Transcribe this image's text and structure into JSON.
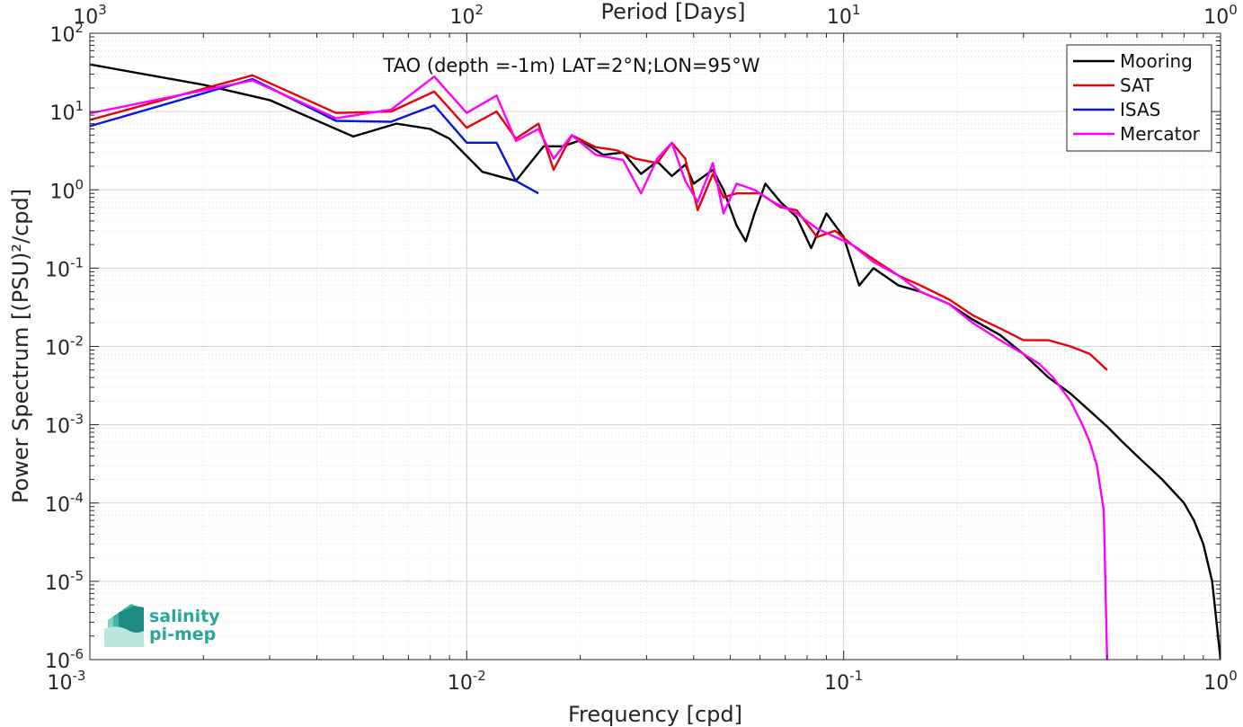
{
  "chart_data": {
    "type": "line",
    "title": "TAO (depth =-1m) LAT=2°N;LON=95°W",
    "xlabel": "Frequency [cpd]",
    "ylabel": "Power Spectrum [(PSU)²/cpd]",
    "x2label": "Period [Days]",
    "xscale": "log",
    "yscale": "log",
    "xlim": [
      0.001,
      1
    ],
    "ylim": [
      1e-06,
      100
    ],
    "x_ticks": [
      {
        "base": "10",
        "exp": "-3"
      },
      {
        "base": "10",
        "exp": "-2"
      },
      {
        "base": "10",
        "exp": "-1"
      },
      {
        "base": "10",
        "exp": "0"
      }
    ],
    "x2_ticks": [
      {
        "base": "10",
        "exp": "3"
      },
      {
        "base": "10",
        "exp": "2"
      },
      {
        "base": "10",
        "exp": "1"
      },
      {
        "base": "10",
        "exp": "0"
      }
    ],
    "y_ticks": [
      {
        "base": "10",
        "exp": "2"
      },
      {
        "base": "10",
        "exp": "1"
      },
      {
        "base": "10",
        "exp": "0"
      },
      {
        "base": "10",
        "exp": "-1"
      },
      {
        "base": "10",
        "exp": "-2"
      },
      {
        "base": "10",
        "exp": "-3"
      },
      {
        "base": "10",
        "exp": "-4"
      },
      {
        "base": "10",
        "exp": "-5"
      },
      {
        "base": "10",
        "exp": "-6"
      }
    ],
    "grid": true,
    "minor_grid": true,
    "legend_position": "top-right",
    "series": [
      {
        "name": "Mooring",
        "color": "#000000",
        "points": [
          [
            0.001,
            40
          ],
          [
            0.002,
            22
          ],
          [
            0.003,
            14
          ],
          [
            0.005,
            4.8
          ],
          [
            0.0065,
            7
          ],
          [
            0.008,
            6
          ],
          [
            0.009,
            4.5
          ],
          [
            0.011,
            1.7
          ],
          [
            0.0135,
            1.3
          ],
          [
            0.016,
            3.6
          ],
          [
            0.018,
            3.6
          ],
          [
            0.02,
            4.3
          ],
          [
            0.023,
            2.8
          ],
          [
            0.026,
            3.0
          ],
          [
            0.029,
            1.6
          ],
          [
            0.032,
            2.3
          ],
          [
            0.035,
            1.5
          ],
          [
            0.038,
            2.1
          ],
          [
            0.04,
            1.2
          ],
          [
            0.045,
            1.8
          ],
          [
            0.048,
            1.0
          ],
          [
            0.052,
            0.35
          ],
          [
            0.055,
            0.22
          ],
          [
            0.058,
            0.5
          ],
          [
            0.062,
            1.2
          ],
          [
            0.068,
            0.7
          ],
          [
            0.075,
            0.45
          ],
          [
            0.082,
            0.18
          ],
          [
            0.09,
            0.5
          ],
          [
            0.1,
            0.25
          ],
          [
            0.11,
            0.06
          ],
          [
            0.12,
            0.1
          ],
          [
            0.14,
            0.06
          ],
          [
            0.16,
            0.05
          ],
          [
            0.19,
            0.035
          ],
          [
            0.22,
            0.022
          ],
          [
            0.26,
            0.014
          ],
          [
            0.3,
            0.008
          ],
          [
            0.35,
            0.004
          ],
          [
            0.4,
            0.0025
          ],
          [
            0.45,
            0.0015
          ],
          [
            0.5,
            0.00095
          ],
          [
            0.55,
            0.0006
          ],
          [
            0.6,
            0.0004
          ],
          [
            0.65,
            0.00028
          ],
          [
            0.7,
            0.0002
          ],
          [
            0.75,
            0.00014
          ],
          [
            0.8,
            0.0001
          ],
          [
            0.85,
            6e-05
          ],
          [
            0.9,
            3e-05
          ],
          [
            0.95,
            1e-05
          ],
          [
            1.0,
            1e-06
          ]
        ]
      },
      {
        "name": "SAT",
        "color": "#e8000b",
        "points": [
          [
            0.001,
            7.8
          ],
          [
            0.0027,
            29
          ],
          [
            0.0045,
            9.6
          ],
          [
            0.0063,
            10
          ],
          [
            0.0082,
            18
          ],
          [
            0.01,
            6.2
          ],
          [
            0.012,
            10
          ],
          [
            0.0135,
            4.5
          ],
          [
            0.0155,
            7
          ],
          [
            0.017,
            1.8
          ],
          [
            0.019,
            5
          ],
          [
            0.022,
            3.5
          ],
          [
            0.025,
            3.2
          ],
          [
            0.028,
            2.5
          ],
          [
            0.032,
            2.2
          ],
          [
            0.035,
            4
          ],
          [
            0.038,
            2.5
          ],
          [
            0.041,
            0.55
          ],
          [
            0.045,
            1.6
          ],
          [
            0.048,
            0.8
          ],
          [
            0.052,
            0.9
          ],
          [
            0.06,
            0.9
          ],
          [
            0.068,
            0.6
          ],
          [
            0.075,
            0.55
          ],
          [
            0.085,
            0.25
          ],
          [
            0.095,
            0.3
          ],
          [
            0.105,
            0.2
          ],
          [
            0.12,
            0.13
          ],
          [
            0.14,
            0.08
          ],
          [
            0.16,
            0.06
          ],
          [
            0.19,
            0.04
          ],
          [
            0.22,
            0.025
          ],
          [
            0.26,
            0.017
          ],
          [
            0.3,
            0.012
          ],
          [
            0.35,
            0.012
          ],
          [
            0.4,
            0.01
          ],
          [
            0.45,
            0.008
          ],
          [
            0.5,
            0.005
          ]
        ]
      },
      {
        "name": "ISAS",
        "color": "#0a14e0",
        "points": [
          [
            0.001,
            6.5
          ],
          [
            0.0027,
            26
          ],
          [
            0.0045,
            7.6
          ],
          [
            0.0063,
            7.4
          ],
          [
            0.0082,
            12
          ],
          [
            0.01,
            4
          ],
          [
            0.012,
            4
          ],
          [
            0.0135,
            1.3
          ],
          [
            0.0155,
            0.9
          ]
        ]
      },
      {
        "name": "Mercator",
        "color": "#ff00ff",
        "points": [
          [
            0.001,
            9.5
          ],
          [
            0.0027,
            25
          ],
          [
            0.0045,
            8.2
          ],
          [
            0.0063,
            10.6
          ],
          [
            0.0082,
            28
          ],
          [
            0.01,
            9.6
          ],
          [
            0.012,
            16
          ],
          [
            0.0135,
            4.2
          ],
          [
            0.0155,
            6
          ],
          [
            0.017,
            2.5
          ],
          [
            0.019,
            5
          ],
          [
            0.022,
            2.8
          ],
          [
            0.026,
            2.4
          ],
          [
            0.029,
            0.9
          ],
          [
            0.032,
            2.5
          ],
          [
            0.035,
            4
          ],
          [
            0.038,
            1.3
          ],
          [
            0.041,
            0.7
          ],
          [
            0.045,
            2.2
          ],
          [
            0.048,
            0.5
          ],
          [
            0.052,
            1.2
          ],
          [
            0.058,
            1.0
          ],
          [
            0.065,
            0.7
          ],
          [
            0.075,
            0.5
          ],
          [
            0.085,
            0.32
          ],
          [
            0.095,
            0.25
          ],
          [
            0.105,
            0.2
          ],
          [
            0.12,
            0.12
          ],
          [
            0.14,
            0.08
          ],
          [
            0.16,
            0.05
          ],
          [
            0.19,
            0.035
          ],
          [
            0.22,
            0.02
          ],
          [
            0.26,
            0.012
          ],
          [
            0.3,
            0.008
          ],
          [
            0.33,
            0.006
          ],
          [
            0.36,
            0.004
          ],
          [
            0.4,
            0.002
          ],
          [
            0.43,
            0.001
          ],
          [
            0.45,
            0.0006
          ],
          [
            0.47,
            0.0003
          ],
          [
            0.49,
            8e-05
          ],
          [
            0.5,
            1e-06
          ]
        ]
      }
    ]
  },
  "logo": {
    "line1": "salinity",
    "line2": "pi-mep"
  }
}
